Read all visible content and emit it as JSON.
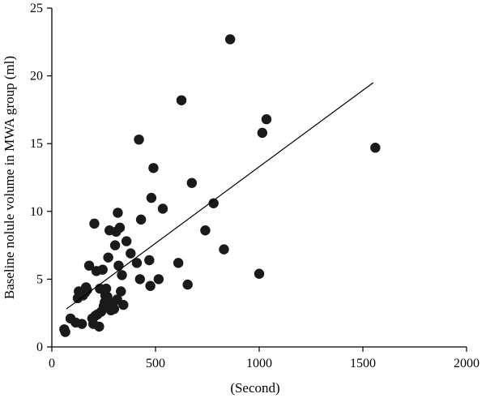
{
  "chart_data": {
    "type": "scatter",
    "title": "",
    "xlabel": "(Second)",
    "ylabel": "Baseline nolule volume in MWA group (ml)",
    "xlim": [
      0,
      2000
    ],
    "ylim": [
      0,
      25
    ],
    "xticks": [
      0,
      500,
      1000,
      1500,
      2000
    ],
    "yticks": [
      0,
      5,
      10,
      15,
      20,
      25
    ],
    "grid": false,
    "legend": "none",
    "point_color": "#1a1a1a",
    "series": [
      {
        "points": [
          [
            60,
            1.3
          ],
          [
            65,
            1.1
          ],
          [
            90,
            2.1
          ],
          [
            115,
            1.8
          ],
          [
            125,
            3.6
          ],
          [
            130,
            4.1
          ],
          [
            145,
            1.7
          ],
          [
            150,
            3.8
          ],
          [
            160,
            4.0
          ],
          [
            165,
            4.4
          ],
          [
            170,
            4.2
          ],
          [
            180,
            6.0
          ],
          [
            195,
            2.1
          ],
          [
            200,
            1.7
          ],
          [
            205,
            9.1
          ],
          [
            210,
            2.3
          ],
          [
            215,
            5.6
          ],
          [
            220,
            2.4
          ],
          [
            228,
            1.5
          ],
          [
            232,
            4.3
          ],
          [
            238,
            2.6
          ],
          [
            245,
            5.7
          ],
          [
            250,
            3.0
          ],
          [
            255,
            3.3
          ],
          [
            258,
            3.8
          ],
          [
            262,
            4.3
          ],
          [
            268,
            3.7
          ],
          [
            272,
            6.6
          ],
          [
            278,
            8.6
          ],
          [
            285,
            2.7
          ],
          [
            295,
            3.2
          ],
          [
            300,
            2.8
          ],
          [
            305,
            7.5
          ],
          [
            310,
            8.5
          ],
          [
            315,
            3.5
          ],
          [
            318,
            9.9
          ],
          [
            322,
            6.0
          ],
          [
            328,
            8.8
          ],
          [
            333,
            4.1
          ],
          [
            338,
            5.3
          ],
          [
            345,
            3.1
          ],
          [
            360,
            7.8
          ],
          [
            380,
            6.9
          ],
          [
            410,
            6.2
          ],
          [
            420,
            15.3
          ],
          [
            425,
            5.0
          ],
          [
            430,
            9.4
          ],
          [
            470,
            6.4
          ],
          [
            475,
            4.5
          ],
          [
            480,
            11.0
          ],
          [
            490,
            13.2
          ],
          [
            515,
            5.0
          ],
          [
            535,
            10.2
          ],
          [
            610,
            6.2
          ],
          [
            625,
            18.2
          ],
          [
            655,
            4.6
          ],
          [
            675,
            12.1
          ],
          [
            740,
            8.6
          ],
          [
            780,
            10.6
          ],
          [
            830,
            7.2
          ],
          [
            860,
            22.7
          ],
          [
            1000,
            5.4
          ],
          [
            1015,
            15.8
          ],
          [
            1035,
            16.8
          ],
          [
            1560,
            14.7
          ]
        ]
      }
    ],
    "trendline": {
      "x": [
        70,
        1550
      ],
      "y": [
        2.8,
        19.5
      ]
    }
  }
}
